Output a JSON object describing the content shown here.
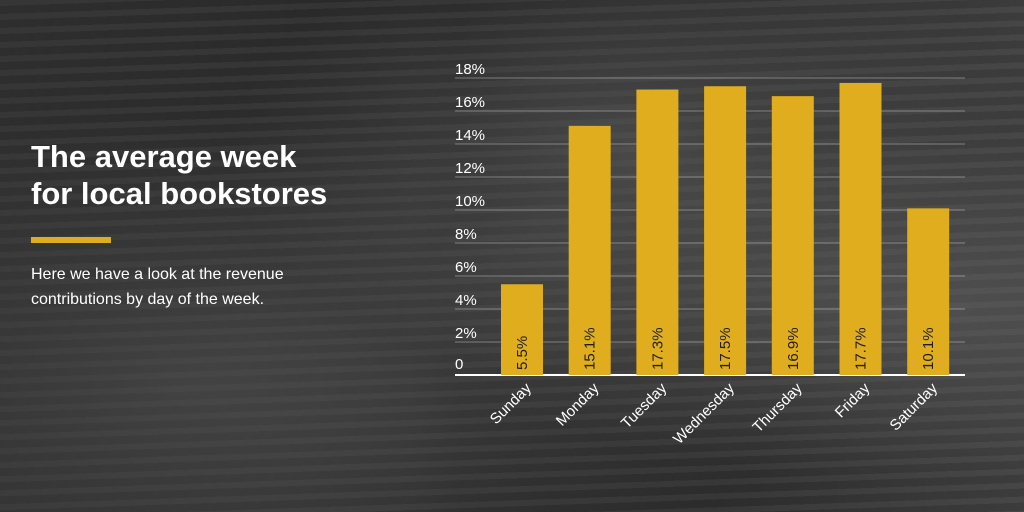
{
  "header": {
    "title_line1": "The average week",
    "title_line2": "for local bookstores",
    "subtitle": "Here we have a look at the revenue contributions by day of the week."
  },
  "colors": {
    "bar": "#dfad1e",
    "accent": "#dfad1e",
    "text": "#ffffff",
    "grid": "rgba(255,255,255,0.35)",
    "bar_label": "#1f1f1f"
  },
  "chart_data": {
    "type": "bar",
    "categories": [
      "Sunday",
      "Monday",
      "Tuesday",
      "Wednesday",
      "Thursday",
      "Friday",
      "Saturday"
    ],
    "values": [
      5.5,
      15.1,
      17.3,
      17.5,
      16.9,
      17.7,
      10.1
    ],
    "data_labels": [
      "5.5%",
      "15.1%",
      "17.3%",
      "17.5%",
      "16.9%",
      "17.7%",
      "10.1%"
    ],
    "y_ticks": [
      0,
      2,
      4,
      6,
      8,
      10,
      12,
      14,
      16,
      18
    ],
    "y_tick_labels": [
      "0",
      "2%",
      "4%",
      "6%",
      "8%",
      "10%",
      "12%",
      "14%",
      "16%",
      "18%"
    ],
    "ylim": [
      0,
      18
    ],
    "grid": true,
    "title": "",
    "xlabel": "",
    "ylabel": ""
  }
}
